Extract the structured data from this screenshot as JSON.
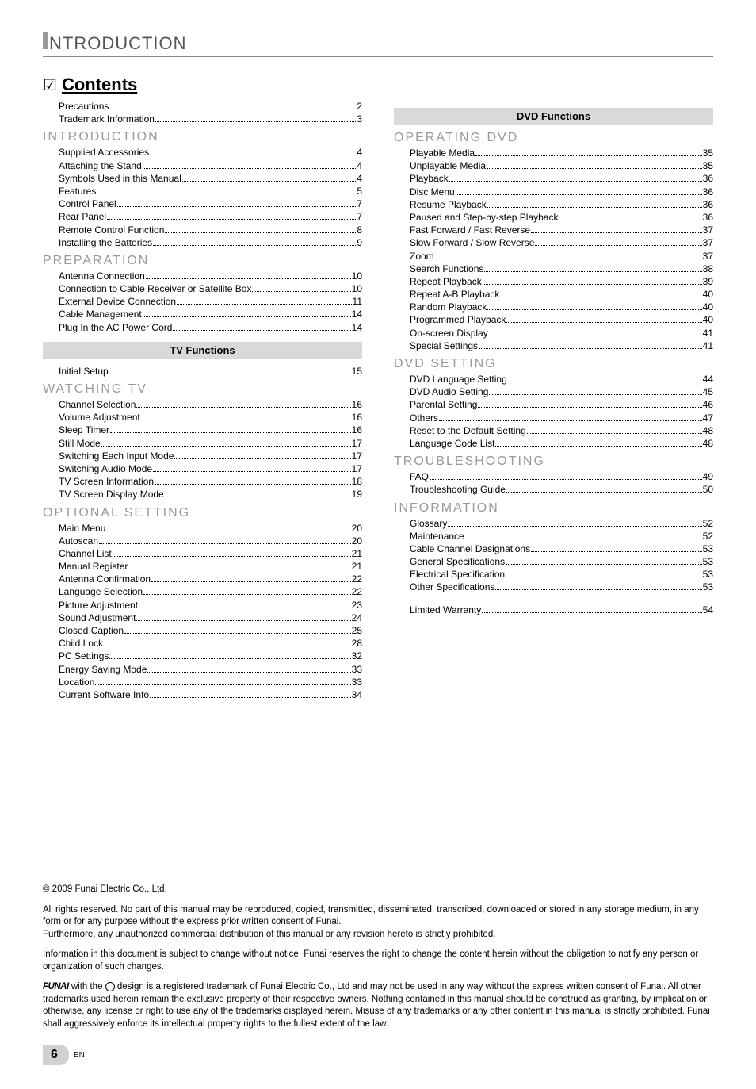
{
  "header": {
    "title": "NTRODUCTION"
  },
  "contentsTitle": {
    "check": "☑",
    "word": "Contents"
  },
  "bands": {
    "tv": "TV Functions",
    "dvd": "DVD Functions"
  },
  "leftTop": [
    {
      "label": "Precautions",
      "page": "2"
    },
    {
      "label": "Trademark Information",
      "page": "3"
    }
  ],
  "sections": {
    "introduction": {
      "title": "INTRODUCTION",
      "items": [
        {
          "label": "Supplied Accessories",
          "page": "4"
        },
        {
          "label": "Attaching the Stand",
          "page": "4"
        },
        {
          "label": "Symbols Used in this Manual",
          "page": "4"
        },
        {
          "label": "Features",
          "page": "5"
        },
        {
          "label": "Control Panel",
          "page": "7"
        },
        {
          "label": "Rear Panel",
          "page": "7"
        },
        {
          "label": "Remote Control Function",
          "page": "8"
        },
        {
          "label": "Installing the Batteries",
          "page": "9"
        }
      ]
    },
    "preparation": {
      "title": "PREPARATION",
      "items": [
        {
          "label": "Antenna Connection",
          "page": "10"
        },
        {
          "label": "Connection to Cable Receiver or Satellite Box",
          "page": "10"
        },
        {
          "label": "External Device Connection",
          "page": "11"
        },
        {
          "label": "Cable Management",
          "page": "14"
        },
        {
          "label": "Plug In the AC Power Cord",
          "page": "14"
        }
      ]
    },
    "initial": {
      "items": [
        {
          "label": "Initial Setup",
          "page": "15"
        }
      ]
    },
    "watching": {
      "title": "WATCHING   TV",
      "items": [
        {
          "label": "Channel Selection",
          "page": "16"
        },
        {
          "label": "Volume Adjustment",
          "page": "16"
        },
        {
          "label": "Sleep Timer",
          "page": "16"
        },
        {
          "label": "Still Mode",
          "page": "17"
        },
        {
          "label": "Switching Each Input Mode",
          "page": "17"
        },
        {
          "label": "Switching Audio Mode",
          "page": "17"
        },
        {
          "label": "TV Screen Information",
          "page": "18"
        },
        {
          "label": "TV Screen Display Mode",
          "page": "19"
        }
      ]
    },
    "optional": {
      "title": "OPTIONAL   SETTING",
      "items": [
        {
          "label": "Main Menu",
          "page": "20"
        },
        {
          "label": "Autoscan",
          "page": "20"
        },
        {
          "label": "Channel List",
          "page": "21"
        },
        {
          "label": "Manual Register",
          "page": "21"
        },
        {
          "label": "Antenna Confirmation",
          "page": "22"
        },
        {
          "label": "Language Selection",
          "page": "22"
        },
        {
          "label": "Picture Adjustment",
          "page": "23"
        },
        {
          "label": "Sound Adjustment",
          "page": "24"
        },
        {
          "label": "Closed Caption",
          "page": "25"
        },
        {
          "label": "Child Lock",
          "page": "28"
        },
        {
          "label": "PC Settings",
          "page": "32"
        },
        {
          "label": "Energy Saving Mode",
          "page": "33"
        },
        {
          "label": "Location",
          "page": "33"
        },
        {
          "label": "Current Software Info",
          "page": "34"
        }
      ]
    },
    "operating": {
      "title": "OPERATING   DVD",
      "items": [
        {
          "label": "Playable Media",
          "page": "35"
        },
        {
          "label": "Unplayable Media",
          "page": "35"
        },
        {
          "label": "Playback",
          "page": "36"
        },
        {
          "label": "Disc Menu",
          "page": "36"
        },
        {
          "label": "Resume Playback",
          "page": "36"
        },
        {
          "label": "Paused and Step-by-step Playback",
          "page": "36"
        },
        {
          "label": "Fast Forward / Fast Reverse",
          "page": "37"
        },
        {
          "label": "Slow Forward / Slow Reverse",
          "page": "37"
        },
        {
          "label": "Zoom",
          "page": "37"
        },
        {
          "label": "Search Functions",
          "page": "38"
        },
        {
          "label": "Repeat Playback",
          "page": "39"
        },
        {
          "label": "Repeat A-B Playback",
          "page": "40"
        },
        {
          "label": "Random Playback",
          "page": "40"
        },
        {
          "label": "Programmed Playback",
          "page": "40"
        },
        {
          "label": "On-screen Display",
          "page": "41"
        },
        {
          "label": "Special Settings",
          "page": "41"
        }
      ]
    },
    "dvdsetting": {
      "title": "DVD   SETTING",
      "items": [
        {
          "label": "DVD Language Setting",
          "page": "44"
        },
        {
          "label": "DVD Audio Setting",
          "page": "45"
        },
        {
          "label": "Parental Setting",
          "page": "46"
        },
        {
          "label": "Others",
          "page": "47"
        },
        {
          "label": "Reset to the Default Setting",
          "page": "48"
        },
        {
          "label": "Language Code List",
          "page": "48"
        }
      ]
    },
    "troubleshooting": {
      "title": "TROUBLESHOOTING",
      "items": [
        {
          "label": "FAQ",
          "page": "49"
        },
        {
          "label": "Troubleshooting Guide",
          "page": "50"
        }
      ]
    },
    "information": {
      "title": "INFORMATION",
      "items": [
        {
          "label": "Glossary",
          "page": "52"
        },
        {
          "label": "Maintenance",
          "page": "52"
        },
        {
          "label": "Cable Channel Designations",
          "page": "53"
        },
        {
          "label": "General Specifications",
          "page": "53"
        },
        {
          "label": "Electrical Specification",
          "page": "53"
        },
        {
          "label": "Other Specifications",
          "page": "53"
        }
      ]
    },
    "warranty": {
      "items": [
        {
          "label": "Limited Warranty",
          "page": "54"
        }
      ]
    }
  },
  "legal": {
    "copyright": "© 2009 Funai Electric Co., Ltd.",
    "p1": "All rights reserved. No part of this manual may be reproduced, copied, transmitted, disseminated, transcribed, downloaded or stored in any storage medium, in any form or for any purpose without the express prior written consent of Funai.",
    "p1b": "Furthermore, any unauthorized commercial distribution of this manual or any revision hereto is strictly prohibited.",
    "p2": "Information in this document is subject to change without notice. Funai reserves the right to change the content herein without the obligation to notify any person or organization of such changes.",
    "p3a": "FUNAI",
    "p3b": " with the ",
    "p3c": " design is a registered trademark of Funai Electric Co., Ltd and may not be used in any way without the express written consent of Funai. All other trademarks used herein remain the exclusive property of their respective owners. Nothing contained in this manual should be construed as granting, by implication or otherwise, any license or right to use any of the trademarks displayed herein. Misuse of any trademarks or any other content in this manual is strictly prohibited. Funai shall aggressively enforce its intellectual property rights to the fullest extent of the law."
  },
  "footer": {
    "pageNumber": "6",
    "lang": "EN"
  }
}
